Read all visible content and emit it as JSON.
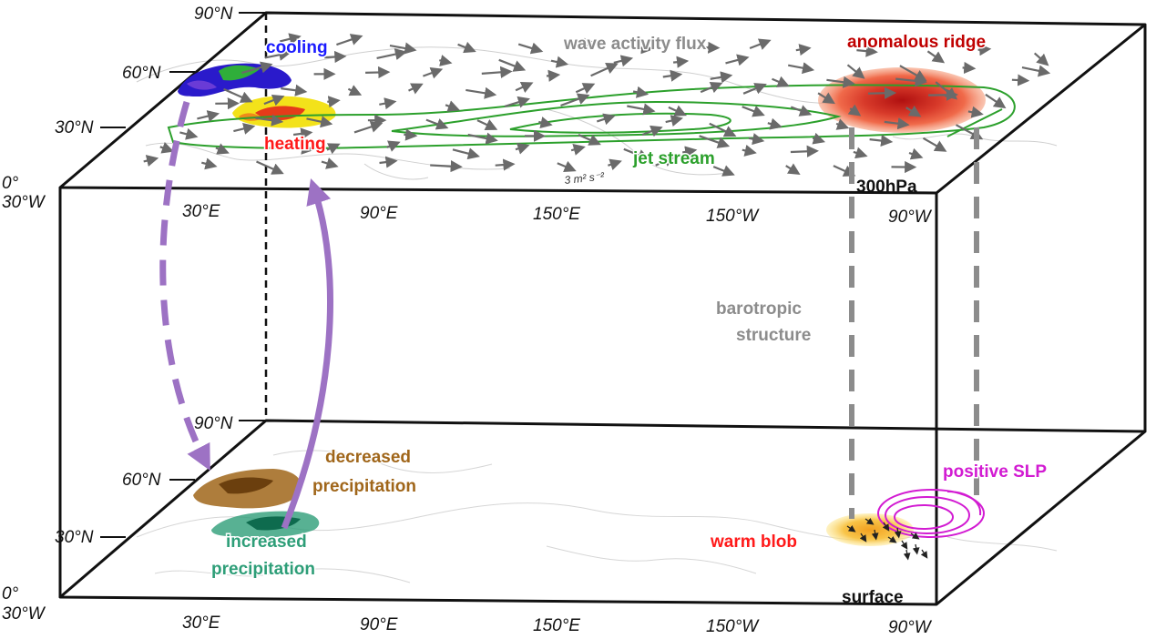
{
  "diagram": {
    "top_level": {
      "level_label": "300hPa",
      "lat_ticks": [
        "90°N",
        "60°N",
        "30°N",
        "0°"
      ],
      "lon_ticks": [
        "30°W",
        "30°E",
        "90°E",
        "150°E",
        "150°W",
        "90°W"
      ],
      "labels": {
        "cooling": "cooling",
        "heating": "heating",
        "wave_activity_flux": "wave activity flux",
        "anomalous_ridge": "anomalous ridge",
        "jet_stream": "jet stream",
        "vector_scale": "3 m² s⁻²"
      }
    },
    "middle": {
      "barotropic_line1": "barotropic",
      "barotropic_line2": "structure"
    },
    "bottom_level": {
      "level_label": "surface",
      "lat_ticks": [
        "90°N",
        "60°N",
        "30°N",
        "0°"
      ],
      "lon_ticks": [
        "30°W",
        "30°E",
        "90°E",
        "150°E",
        "150°W",
        "90°W"
      ],
      "labels": {
        "decreased_line1": "decreased",
        "decreased_line2": "precipitation",
        "increased_line1": "increased",
        "increased_line2": "precipitation",
        "positive_slp": "positive SLP",
        "warm_blob": "warm blob"
      }
    },
    "colors": {
      "cooling": "#1a1aff",
      "heating": "#ff1a1a",
      "wave_activity_flux": "#8c8c8c",
      "anomalous_ridge": "#c00000",
      "jet_stream": "#2ca02c",
      "barotropic": "#8c8c8c",
      "decreased_precip": "#a0661a",
      "increased_precip": "#2e9e78",
      "positive_slp": "#d21bd2",
      "warm_blob": "#ff1a1a",
      "arrow_purple": "#9d72c4"
    }
  }
}
